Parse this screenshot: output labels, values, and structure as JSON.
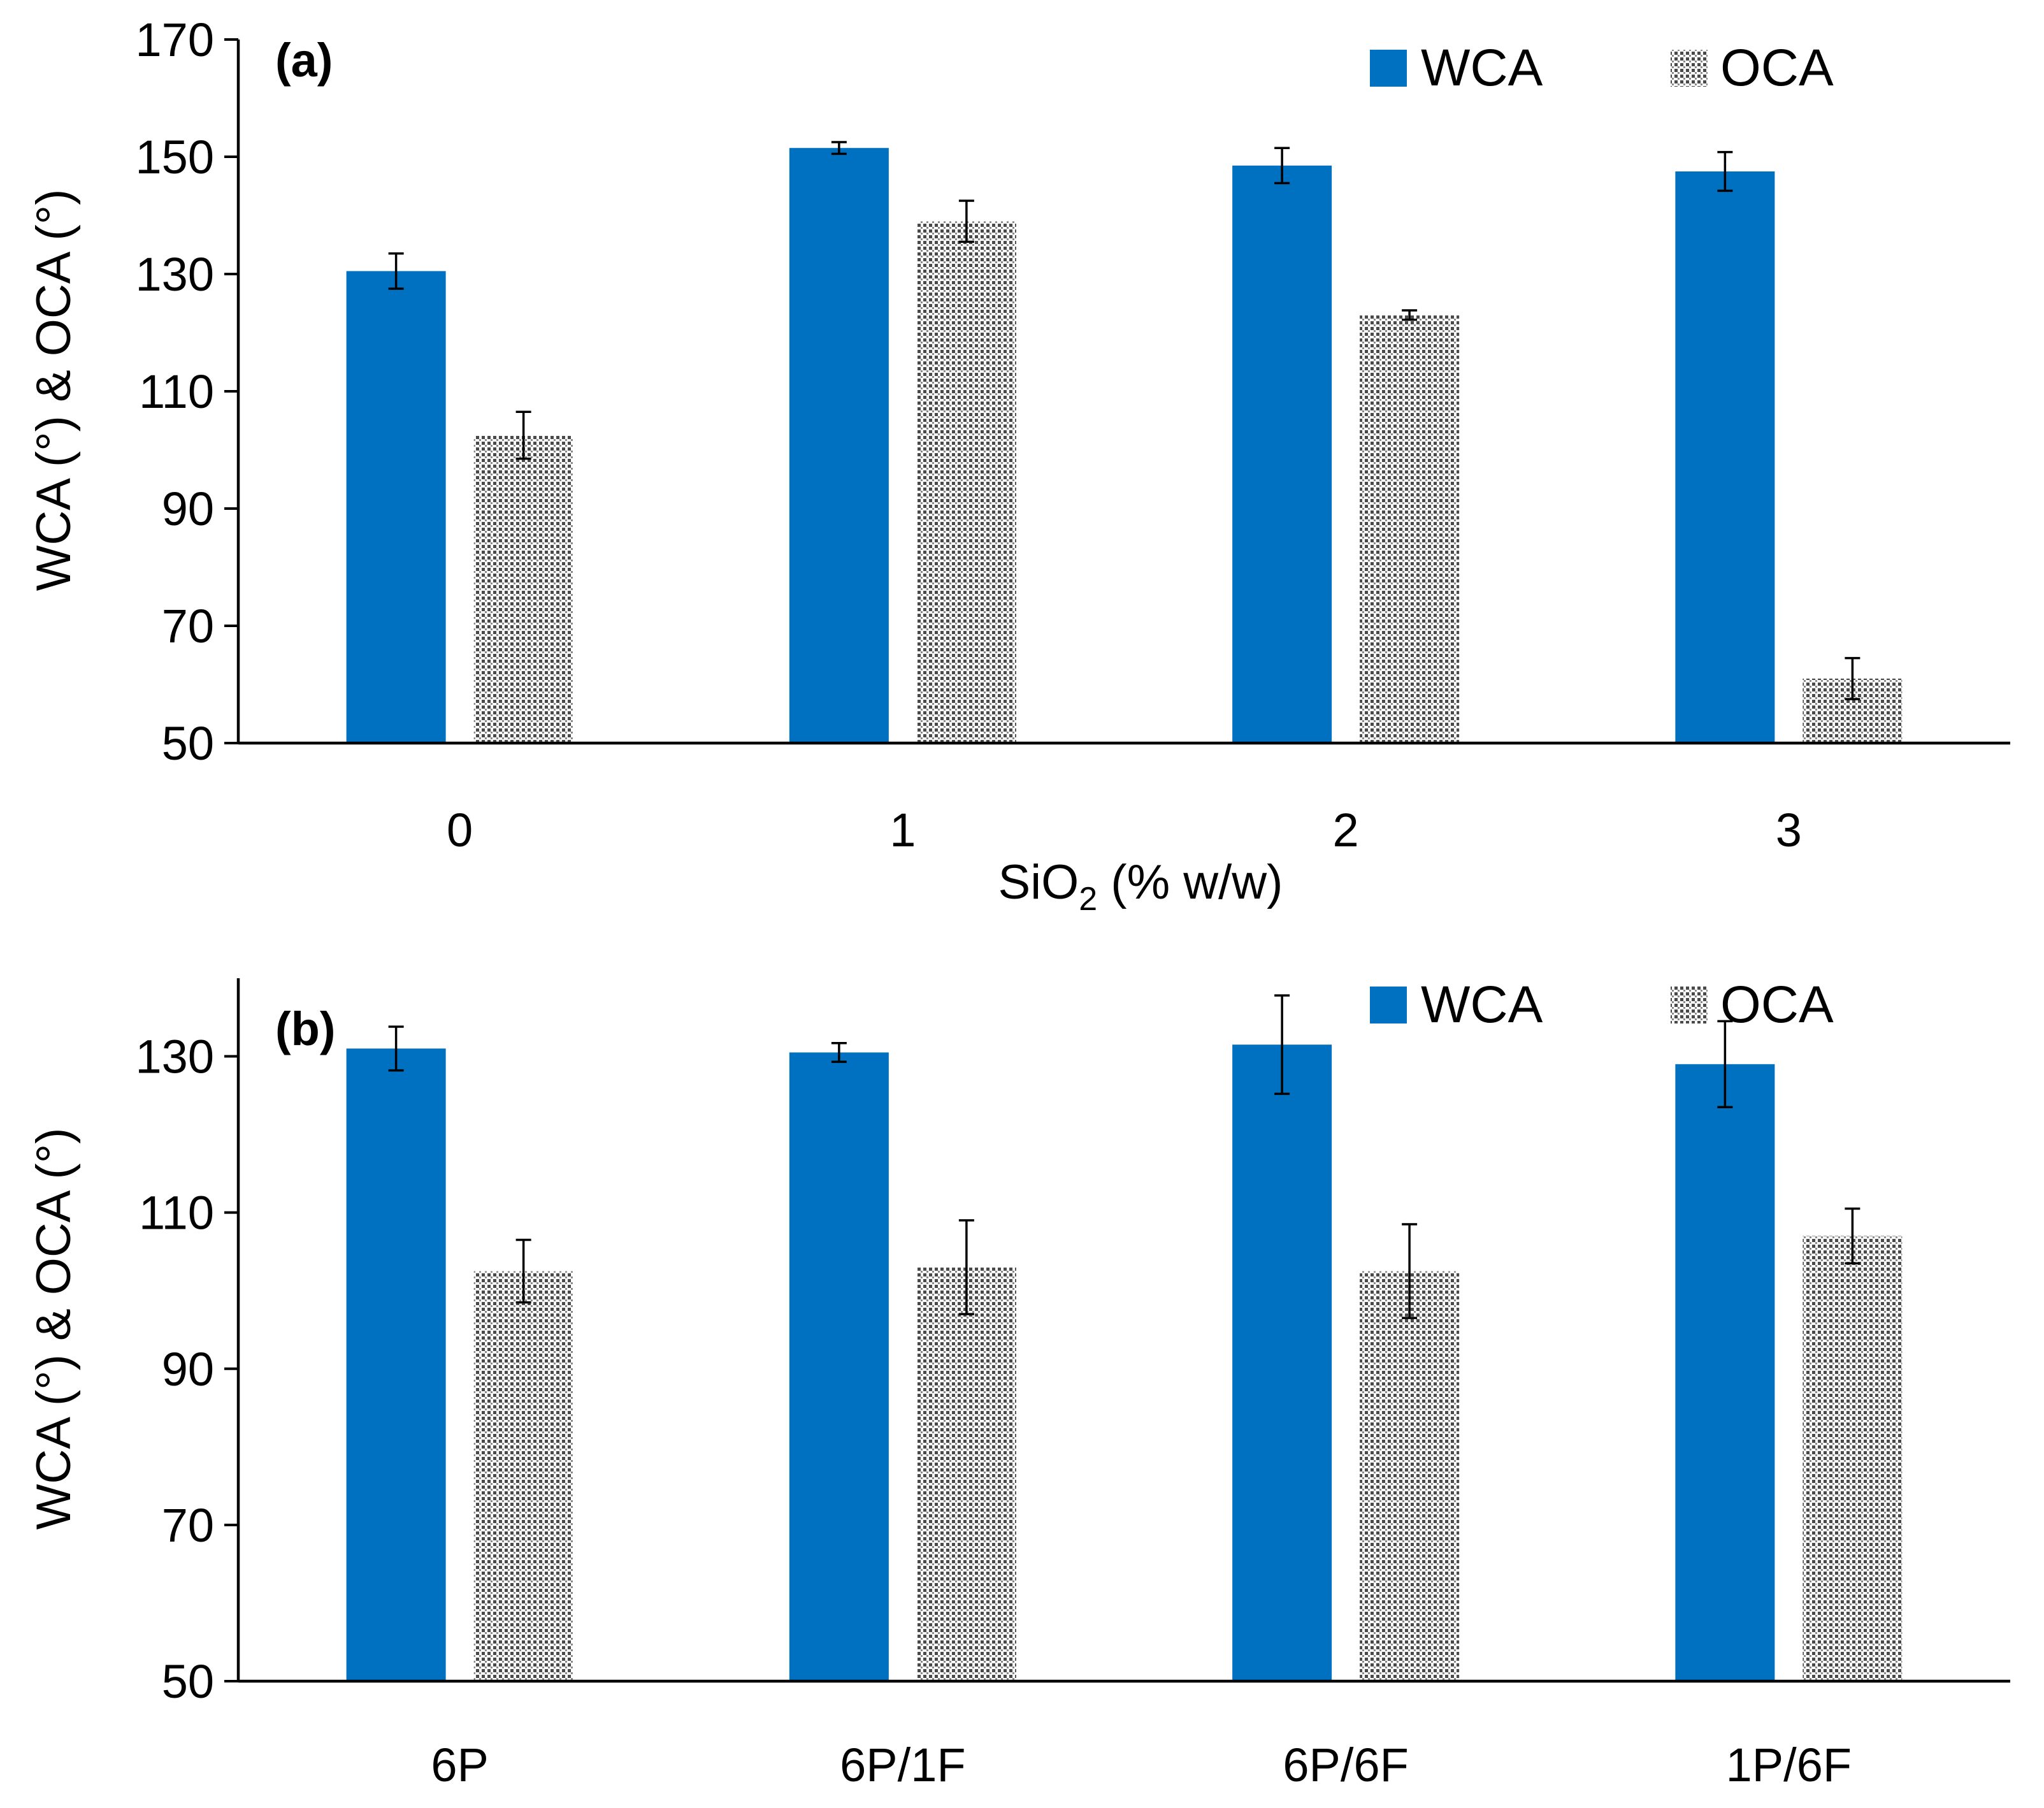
{
  "chart_data": [
    {
      "type": "bar",
      "panel_label": "(a)",
      "categories": [
        "0",
        "1",
        "2",
        "3"
      ],
      "series": [
        {
          "name": "WCA",
          "values": [
            130.5,
            151.5,
            148.5,
            147.5
          ],
          "errors": [
            3,
            1,
            3,
            3.3
          ],
          "color": "#0070c0",
          "pattern": "solid"
        },
        {
          "name": "OCA",
          "values": [
            102.5,
            139,
            123,
            61
          ],
          "errors": [
            4,
            3.5,
            0.8,
            3.5
          ],
          "color": "#5a5a5a",
          "pattern": "dotted-grid"
        }
      ],
      "xlabel": "SiO",
      "xlabel_subscript": "2",
      "xlabel_suffix": " (% w/w)",
      "ylabel": "WCA (°) & OCA (°)",
      "ylim": [
        50,
        170
      ],
      "yticks": [
        "50",
        "70",
        "90",
        "110",
        "130",
        "150",
        "170"
      ],
      "legend_position": "top-right",
      "grid": false
    },
    {
      "type": "bar",
      "panel_label": "(b)",
      "categories": [
        "6P",
        "6P/1F",
        "6P/6F",
        "1P/6F"
      ],
      "series": [
        {
          "name": "WCA",
          "values": [
            131,
            130.5,
            131.5,
            129
          ],
          "errors": [
            2.8,
            1.2,
            6.3,
            5.5
          ],
          "color": "#0070c0",
          "pattern": "solid"
        },
        {
          "name": "OCA",
          "values": [
            102.5,
            103,
            102.5,
            107
          ],
          "errors": [
            4,
            6,
            6,
            3.5
          ],
          "color": "#5a5a5a",
          "pattern": "dotted-grid"
        }
      ],
      "xlabel": "",
      "ylabel": "WCA (°) & OCA (°)",
      "ylim": [
        50,
        140
      ],
      "yticks": [
        "50",
        "70",
        "90",
        "110",
        "130"
      ],
      "legend_position": "top-right",
      "grid": false
    }
  ]
}
